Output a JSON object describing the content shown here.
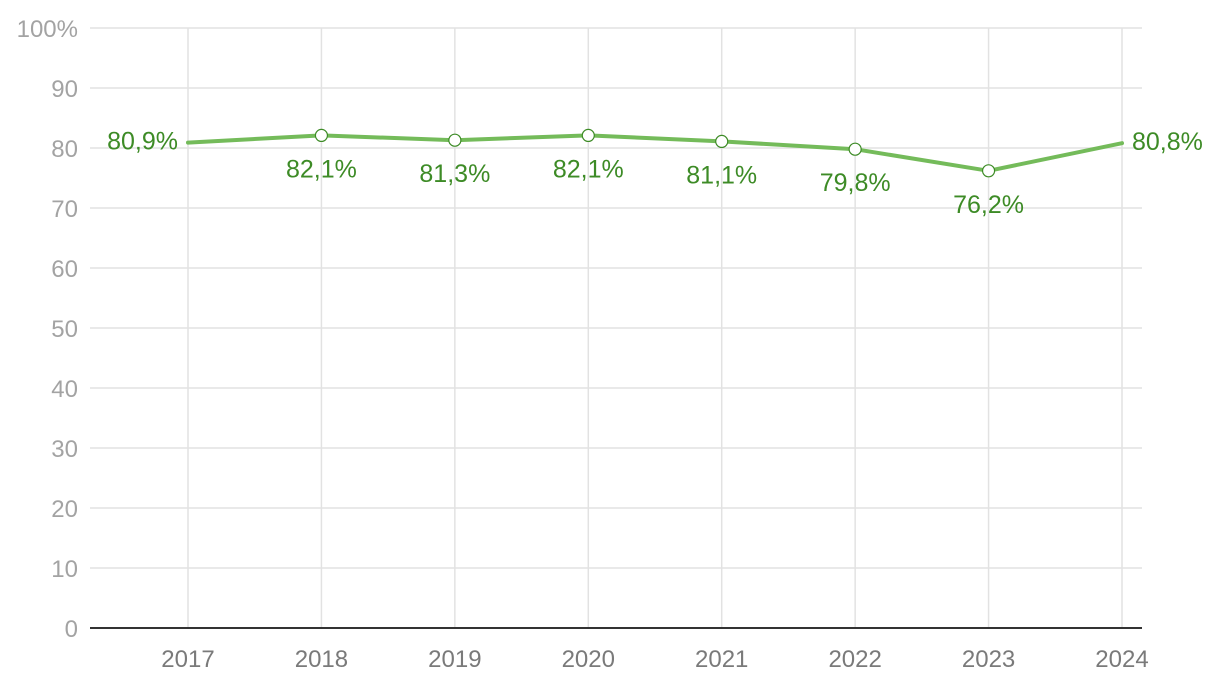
{
  "chart_data": {
    "type": "line",
    "title": "",
    "xlabel": "",
    "ylabel": "",
    "categories": [
      "2017",
      "2018",
      "2019",
      "2020",
      "2021",
      "2022",
      "2023",
      "2024"
    ],
    "series": [
      {
        "values": [
          80.9,
          82.1,
          81.3,
          82.1,
          81.1,
          79.8,
          76.2,
          80.8
        ],
        "labels": [
          "80,9%",
          "82,1%",
          "81,3%",
          "82,1%",
          "81,1%",
          "79,8%",
          "76,2%",
          "80,8%"
        ],
        "color": "#74bb5a",
        "label_color": "#3d8b26"
      }
    ],
    "ylim": [
      0,
      100
    ],
    "yticks": [
      0,
      10,
      20,
      30,
      40,
      50,
      60,
      70,
      80,
      90,
      100
    ],
    "ytick_labels": [
      "0",
      "10",
      "20",
      "30",
      "40",
      "50",
      "60",
      "70",
      "80",
      "90",
      "100%"
    ],
    "grid": true,
    "legend": "none"
  }
}
